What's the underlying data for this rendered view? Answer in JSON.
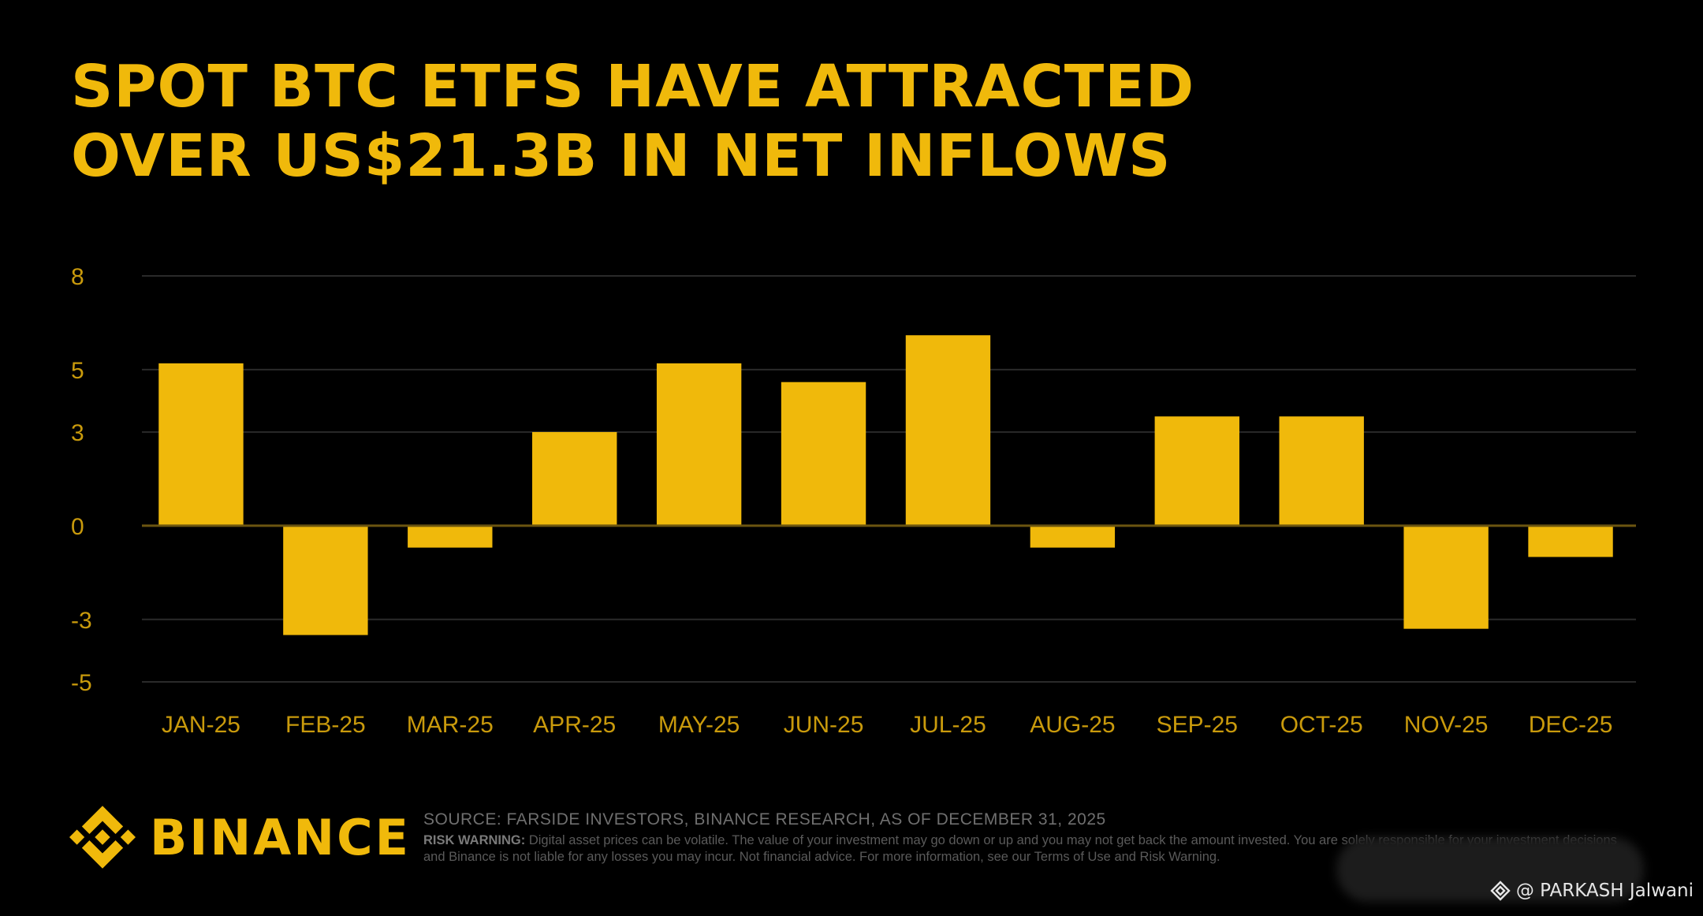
{
  "title": {
    "line1": "SPOT BTC ETFS HAVE ATTRACTED",
    "line2": "OVER US$21.3B IN NET INFLOWS"
  },
  "colors": {
    "background": "#000000",
    "bar": "#F0B90B",
    "tick_text": "#C99A0C",
    "grid": "#2a2a2a",
    "zero_line": "#6b5510"
  },
  "chart_data": {
    "type": "bar",
    "categories": [
      "JAN-25",
      "FEB-25",
      "MAR-25",
      "APR-25",
      "MAY-25",
      "JUN-25",
      "JUL-25",
      "AUG-25",
      "SEP-25",
      "OCT-25",
      "NOV-25",
      "DEC-25"
    ],
    "values": [
      5.2,
      -3.5,
      -0.7,
      3.0,
      5.2,
      4.6,
      6.1,
      -0.7,
      3.5,
      3.5,
      -3.3,
      -1.0
    ],
    "yticks": [
      8,
      5,
      3,
      0,
      -3,
      -5
    ],
    "ylim": [
      -5,
      8
    ],
    "grid": true,
    "title": "SPOT BTC ETFS HAVE ATTRACTED OVER US$21.3B IN NET INFLOWS",
    "xlabel": "",
    "ylabel": ""
  },
  "brand": {
    "name": "BINANCE",
    "logo_icon": "binance-logo-icon"
  },
  "footer": {
    "source": "SOURCE: FARSIDE INVESTORS, BINANCE RESEARCH, AS OF DECEMBER 31, 2025",
    "risk_label": "RISK WARNING:",
    "risk_text": "Digital asset prices can be volatile. The value of your investment may go down or up and you may not get back the amount invested. You are solely responsible for your investment decisions and Binance is not liable for any losses you may incur. Not financial advice. For more information, see our Terms of Use and Risk Warning."
  },
  "watermark": {
    "text": "@ PARKASH Jalwani",
    "icon": "binance-square-icon"
  }
}
